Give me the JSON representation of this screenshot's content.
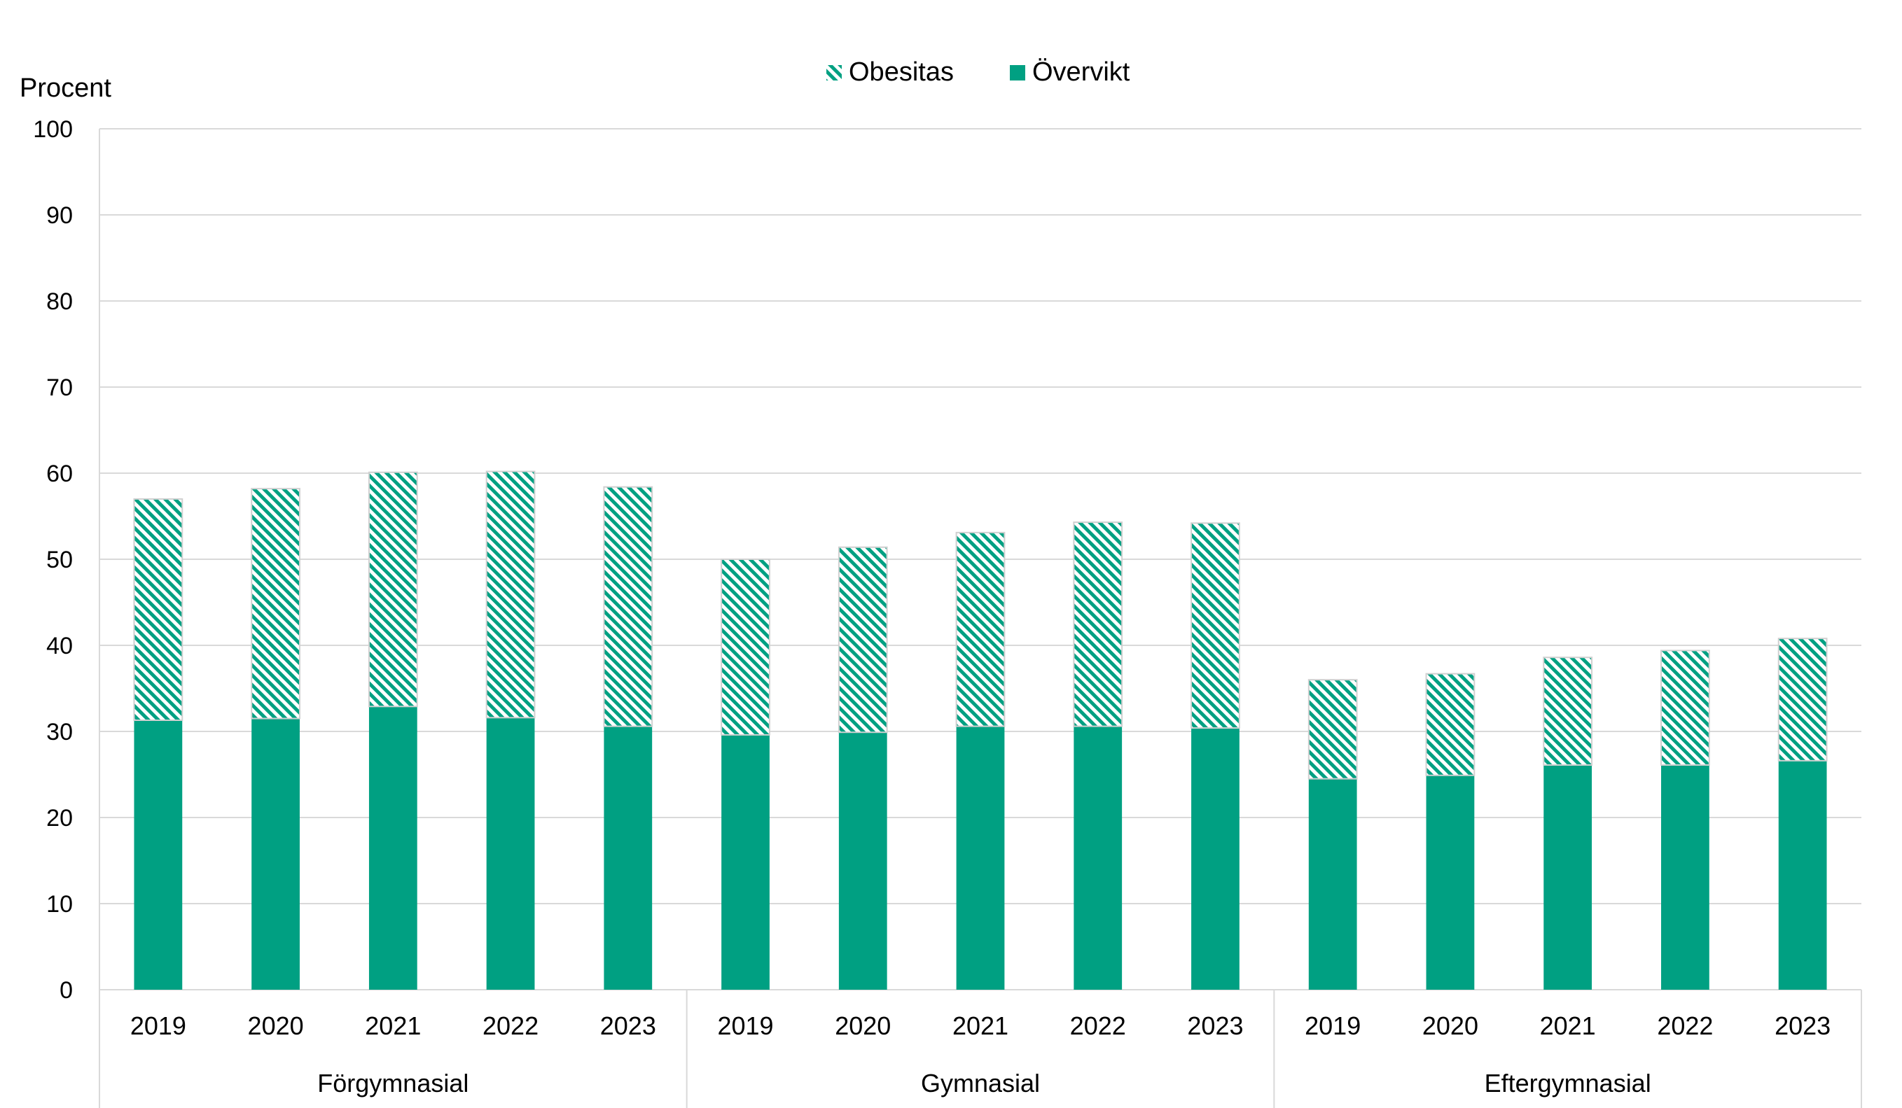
{
  "chart_data": {
    "type": "bar",
    "stacked": true,
    "ylabel": "Procent",
    "ylim": [
      0,
      100
    ],
    "yticks": [
      0,
      10,
      20,
      30,
      40,
      50,
      60,
      70,
      80,
      90,
      100
    ],
    "grid": true,
    "legend_position": "top-center",
    "groups": [
      {
        "label": "Förgymnasial",
        "categories": [
          "2019",
          "2020",
          "2021",
          "2022",
          "2023"
        ]
      },
      {
        "label": "Gymnasial",
        "categories": [
          "2019",
          "2020",
          "2021",
          "2022",
          "2023"
        ]
      },
      {
        "label": "Eftergymnasial",
        "categories": [
          "2019",
          "2020",
          "2021",
          "2022",
          "2023"
        ]
      }
    ],
    "series": [
      {
        "name": "Övervikt",
        "fill": "solid",
        "color": "#00A082",
        "values": [
          31.3,
          31.5,
          32.9,
          31.6,
          30.6,
          29.6,
          29.9,
          30.6,
          30.6,
          30.4,
          24.5,
          24.9,
          26.1,
          26.1,
          26.6
        ]
      },
      {
        "name": "Obesitas",
        "fill": "hatched",
        "color": "#00A082",
        "values": [
          25.7,
          26.7,
          27.2,
          28.6,
          27.8,
          20.4,
          21.5,
          22.5,
          23.7,
          23.8,
          11.5,
          11.8,
          12.5,
          13.3,
          14.2
        ]
      }
    ]
  }
}
